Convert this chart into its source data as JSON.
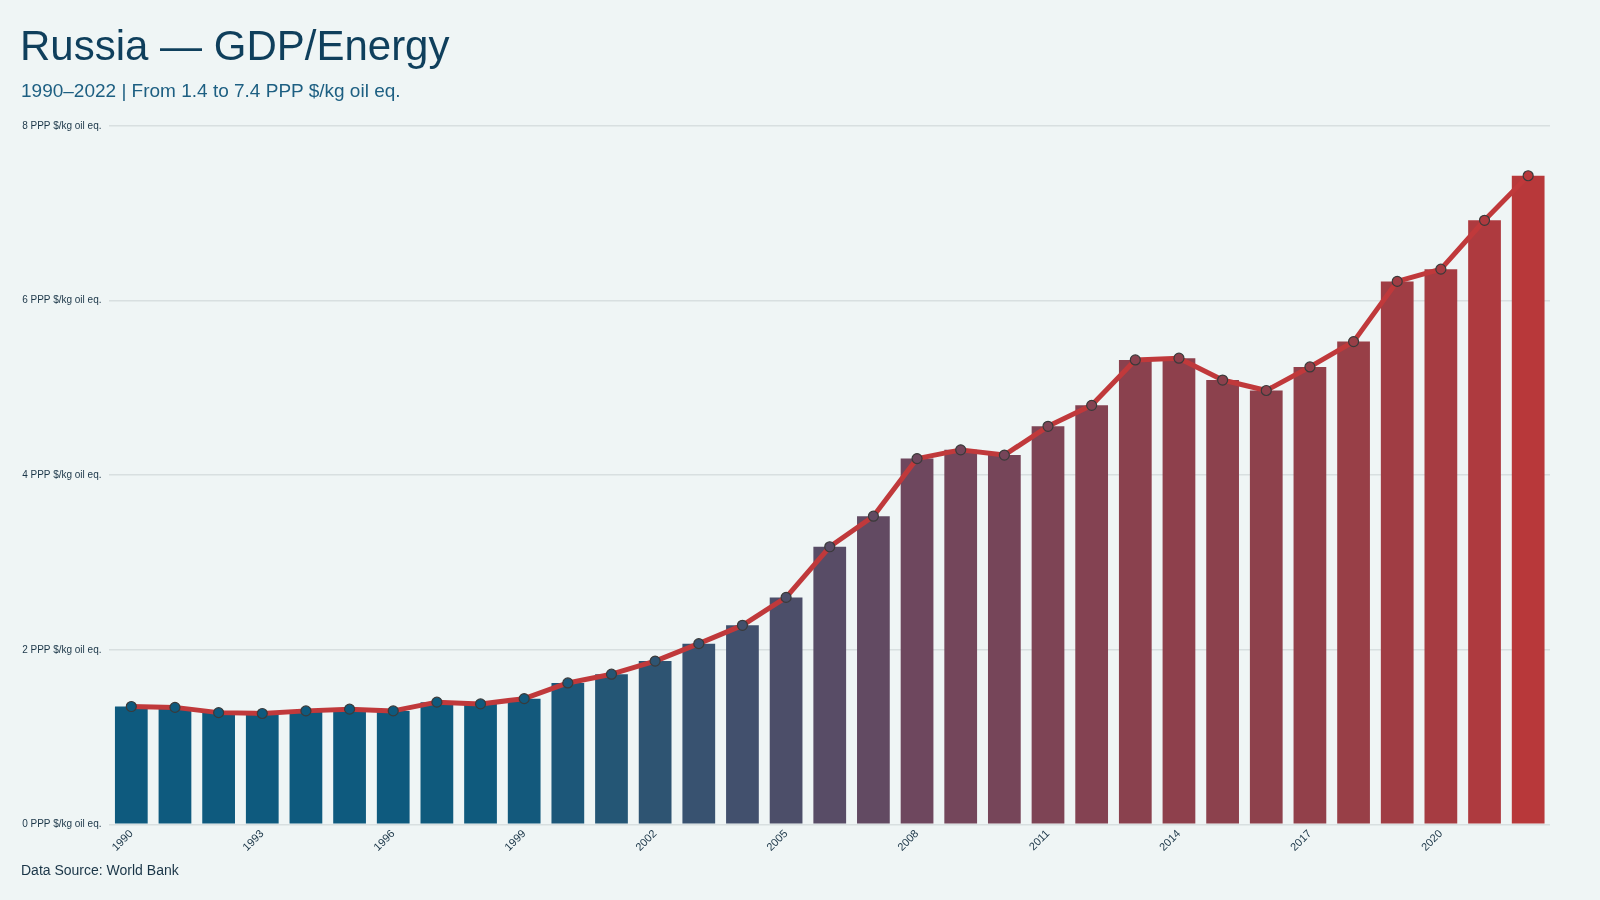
{
  "chart_data": {
    "type": "bar",
    "title": "Russia — GDP/Energy",
    "subtitle": "1990–2022 | From 1.4 to 7.4 PPP $/kg oil eq.",
    "categories": [
      "1990",
      null,
      null,
      "1993",
      null,
      null,
      "1996",
      null,
      null,
      "1999",
      null,
      null,
      "2002",
      null,
      null,
      "2005",
      null,
      null,
      "2008",
      null,
      null,
      "2011",
      null,
      null,
      "2014",
      null,
      null,
      "2017",
      null,
      null,
      "2020",
      null,
      null
    ],
    "series": [
      {
        "values": [
          1.35,
          1.34,
          1.28,
          1.27,
          1.3,
          1.32,
          1.3,
          1.4,
          1.38,
          1.44,
          1.62,
          1.72,
          1.87,
          2.07,
          2.28,
          2.6,
          3.18,
          3.53,
          4.19,
          4.29,
          4.23,
          4.56,
          4.8,
          5.32,
          5.34,
          5.09,
          4.97,
          5.24,
          5.53,
          6.22,
          6.36,
          6.92,
          7.43
        ],
        "colors": [
          "#0e5a7e",
          "#0e5a7e",
          "#0e5a7e",
          "#0e5a7e",
          "#0e5a7e",
          "#0e5a7e",
          "#0e5a7e",
          "#0f5a7d",
          "#0f5a7d",
          "#13597c",
          "#1c5779",
          "#245675",
          "#2e5472",
          "#385270",
          "#42506d",
          "#4c4e69",
          "#584c66",
          "#624a62",
          "#6e475e",
          "#74465b",
          "#764559",
          "#7e4455",
          "#844252",
          "#8a414e",
          "#8e404c",
          "#8c414d",
          "#8e414c",
          "#92404a",
          "#983f47",
          "#a03d44",
          "#a63c42",
          "#ae3a3f",
          "#b8383a"
        ]
      },
      {
        "type": "line",
        "color": "#c0393b",
        "marker": "circle",
        "values": [
          1.35,
          1.34,
          1.28,
          1.27,
          1.3,
          1.32,
          1.3,
          1.4,
          1.38,
          1.44,
          1.62,
          1.72,
          1.87,
          2.07,
          2.28,
          2.6,
          3.18,
          3.53,
          4.19,
          4.29,
          4.23,
          4.56,
          4.8,
          5.32,
          5.34,
          5.09,
          4.97,
          5.24,
          5.53,
          6.22,
          6.36,
          6.92,
          7.43
        ]
      }
    ],
    "ylim": [
      0,
      8
    ],
    "yticks": [
      {
        "value": 0,
        "label": "0 PPP $/kg oil eq."
      },
      {
        "value": 2,
        "label": "2 PPP $/kg oil eq."
      },
      {
        "value": 4,
        "label": "4 PPP $/kg oil eq."
      },
      {
        "value": 6,
        "label": "6 PPP $/kg oil eq."
      },
      {
        "value": 8,
        "label": "8 PPP $/kg oil eq."
      }
    ],
    "grid": "y",
    "annotations": [
      "Data Source: World Bank"
    ]
  }
}
